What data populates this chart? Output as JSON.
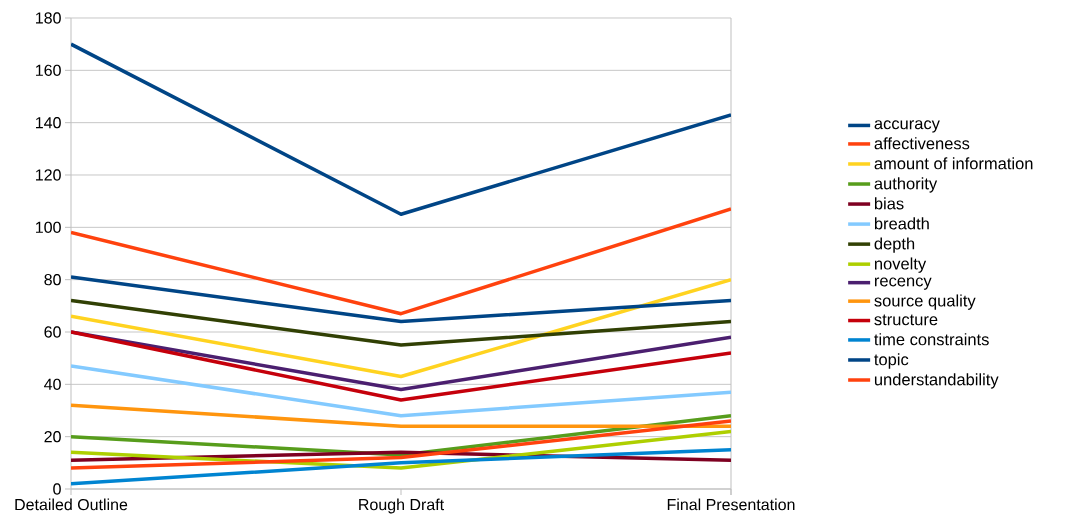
{
  "chart_data": {
    "type": "line",
    "categories": [
      "Detailed Outline",
      "Rough Draft",
      "Final Presentation"
    ],
    "ylim": [
      0,
      180
    ],
    "yticks": [
      0,
      20,
      40,
      60,
      80,
      100,
      120,
      140,
      160,
      180
    ],
    "grid": "y",
    "legend": "right",
    "marker": "none",
    "line_style": "solid",
    "series": [
      {
        "name": "accuracy",
        "color": "#004586",
        "values": [
          170,
          105,
          143
        ]
      },
      {
        "name": "affectiveness",
        "color": "#ff420e",
        "values": [
          98,
          67,
          107
        ]
      },
      {
        "name": "amount of information",
        "color": "#ffd320",
        "values": [
          66,
          43,
          80
        ]
      },
      {
        "name": "authority",
        "color": "#579d1c",
        "values": [
          20,
          13,
          28
        ]
      },
      {
        "name": "bias",
        "color": "#7e0021",
        "values": [
          11,
          14,
          11
        ]
      },
      {
        "name": "breadth",
        "color": "#83caff",
        "values": [
          47,
          28,
          37
        ]
      },
      {
        "name": "depth",
        "color": "#314004",
        "values": [
          72,
          55,
          64
        ]
      },
      {
        "name": "novelty",
        "color": "#aecf00",
        "values": [
          14,
          8,
          22
        ]
      },
      {
        "name": "recency",
        "color": "#4b1f6f",
        "values": [
          60,
          38,
          58
        ]
      },
      {
        "name": "source quality",
        "color": "#ff950e",
        "values": [
          32,
          24,
          24
        ]
      },
      {
        "name": "structure",
        "color": "#c5000b",
        "values": [
          60,
          34,
          52
        ]
      },
      {
        "name": "time constraints",
        "color": "#0084d1",
        "values": [
          2,
          10,
          15
        ]
      },
      {
        "name": "topic",
        "color": "#004586",
        "values": [
          81,
          64,
          72
        ]
      },
      {
        "name": "understandability",
        "color": "#ff420e",
        "values": [
          8,
          12,
          26
        ]
      }
    ]
  }
}
